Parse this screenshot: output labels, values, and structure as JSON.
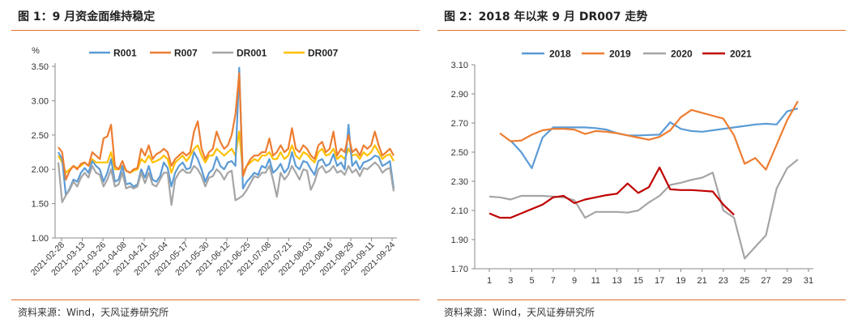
{
  "panels": [
    {
      "title": "图 1：9 月资金面维持稳定",
      "source": "资料来源：Wind，天风证券研究所"
    },
    {
      "title": "图 2：2018 年以来 9 月 DR007 走势",
      "source": "资料来源：Wind，天风证券研究所"
    }
  ],
  "chart_data": [
    {
      "type": "line",
      "title": "",
      "ylabel": "%",
      "ylim": [
        1.0,
        3.5
      ],
      "yticks": [
        "1.00",
        "1.50",
        "2.00",
        "2.50",
        "3.00",
        "3.50"
      ],
      "xticks": [
        "2021-02-28",
        "2021-03-13",
        "2021-03-26",
        "2021-04-08",
        "2021-04-21",
        "2021-05-04",
        "2021-05-17",
        "2021-05-30",
        "2021-06-12",
        "2021-06-25",
        "2021-07-08",
        "2021-07-21",
        "2021-08-03",
        "2021-08-16",
        "2021-08-29",
        "2021-09-11",
        "2021-09-24"
      ],
      "legend_position": "top",
      "grid": false,
      "series": [
        {
          "name": "R001",
          "color": "#5b9bd5",
          "values": [
            2.25,
            2.15,
            1.62,
            1.72,
            1.85,
            1.82,
            1.95,
            2.02,
            1.95,
            2.12,
            2.05,
            2.0,
            1.82,
            1.95,
            2.15,
            1.82,
            1.85,
            2.05,
            1.78,
            1.8,
            1.75,
            1.78,
            2.0,
            1.88,
            2.05,
            1.85,
            1.82,
            1.9,
            2.1,
            2.02,
            1.75,
            1.95,
            2.05,
            2.1,
            2.0,
            2.02,
            2.25,
            2.15,
            2.0,
            1.82,
            1.95,
            2.0,
            2.18,
            2.05,
            2.0,
            2.1,
            2.12,
            2.05,
            3.48,
            1.72,
            1.82,
            1.88,
            1.95,
            1.92,
            2.05,
            2.02,
            2.15,
            1.95,
            2.0,
            2.08,
            1.95,
            2.02,
            2.25,
            2.05,
            2.0,
            2.12,
            2.1,
            2.0,
            1.92,
            2.12,
            2.15,
            2.05,
            2.08,
            2.22,
            2.05,
            2.1,
            2.0,
            2.65,
            2.05,
            2.12,
            2.0,
            2.1,
            2.12,
            2.15,
            2.2,
            2.18,
            2.05,
            2.08,
            2.12,
            1.72
          ]
        },
        {
          "name": "R007",
          "color": "#ed7d31",
          "values": [
            2.32,
            2.25,
            1.85,
            1.98,
            2.05,
            2.0,
            2.08,
            2.1,
            2.05,
            2.25,
            2.2,
            2.15,
            2.45,
            2.48,
            2.65,
            2.05,
            2.0,
            2.12,
            1.98,
            1.95,
            2.0,
            2.02,
            2.3,
            2.2,
            2.35,
            2.15,
            2.22,
            2.25,
            2.3,
            2.25,
            2.05,
            2.15,
            2.2,
            2.25,
            2.2,
            2.25,
            2.55,
            2.7,
            2.3,
            2.15,
            2.25,
            2.3,
            2.55,
            2.4,
            2.3,
            2.35,
            2.5,
            2.8,
            3.4,
            1.9,
            2.05,
            2.15,
            2.2,
            2.2,
            2.25,
            2.25,
            2.45,
            2.2,
            2.25,
            2.35,
            2.25,
            2.3,
            2.6,
            2.3,
            2.25,
            2.35,
            2.3,
            2.2,
            2.15,
            2.35,
            2.4,
            2.25,
            2.3,
            2.55,
            2.2,
            2.3,
            2.25,
            2.5,
            2.25,
            2.3,
            2.2,
            2.35,
            2.3,
            2.35,
            2.55,
            2.35,
            2.2,
            2.25,
            2.3,
            2.2
          ]
        },
        {
          "name": "DR001",
          "color": "#a5a5a5",
          "values": [
            2.1,
            1.52,
            1.62,
            1.7,
            1.82,
            1.75,
            1.88,
            1.95,
            1.88,
            2.05,
            1.95,
            1.92,
            1.75,
            1.85,
            2.0,
            1.75,
            1.78,
            1.95,
            1.72,
            1.75,
            1.72,
            1.75,
            1.95,
            1.8,
            1.95,
            1.78,
            1.75,
            1.85,
            1.95,
            1.95,
            1.48,
            1.85,
            1.95,
            2.0,
            1.95,
            1.95,
            2.05,
            2.0,
            1.9,
            1.75,
            1.88,
            1.9,
            2.0,
            1.95,
            1.85,
            1.95,
            1.98,
            1.55,
            1.58,
            1.62,
            1.7,
            1.8,
            1.9,
            1.88,
            1.95,
            1.95,
            2.05,
            1.85,
            1.6,
            1.95,
            1.85,
            1.92,
            2.05,
            1.95,
            1.85,
            2.0,
            1.98,
            1.7,
            1.82,
            2.0,
            2.05,
            1.95,
            1.98,
            2.05,
            1.95,
            1.98,
            1.92,
            2.05,
            1.95,
            2.0,
            1.9,
            2.02,
            2.0,
            2.05,
            2.1,
            2.05,
            1.95,
            2.0,
            2.02,
            1.68
          ]
        },
        {
          "name": "DR007",
          "color": "#ffc000",
          "values": [
            2.2,
            2.1,
            1.95,
            2.0,
            2.05,
            2.02,
            2.05,
            2.1,
            2.05,
            2.15,
            2.1,
            2.1,
            2.1,
            2.1,
            2.25,
            2.0,
            2.0,
            2.05,
            1.98,
            1.95,
            1.98,
            2.0,
            2.15,
            2.1,
            2.2,
            2.1,
            2.12,
            2.15,
            2.2,
            2.15,
            1.95,
            2.1,
            2.15,
            2.2,
            2.12,
            2.2,
            2.3,
            2.35,
            2.2,
            2.1,
            2.2,
            2.2,
            2.3,
            2.25,
            2.2,
            2.25,
            2.3,
            2.2,
            2.55,
            1.95,
            2.05,
            2.1,
            2.15,
            2.12,
            2.2,
            2.2,
            2.25,
            2.15,
            2.15,
            2.25,
            2.15,
            2.2,
            2.35,
            2.2,
            2.15,
            2.25,
            2.22,
            2.15,
            2.1,
            2.25,
            2.3,
            2.2,
            2.22,
            2.3,
            2.15,
            2.2,
            2.15,
            2.3,
            2.2,
            2.22,
            2.15,
            2.25,
            2.2,
            2.25,
            2.35,
            2.25,
            2.15,
            2.2,
            2.22,
            2.12
          ]
        }
      ]
    },
    {
      "type": "line",
      "title": "",
      "ylabel": "",
      "ylim": [
        1.7,
        3.1
      ],
      "yticks": [
        "1.70",
        "1.90",
        "2.10",
        "2.30",
        "2.50",
        "2.70",
        "2.90",
        "3.10"
      ],
      "xlim": [
        1,
        31
      ],
      "xticks": [
        "1",
        "3",
        "5",
        "7",
        "9",
        "11",
        "13",
        "15",
        "17",
        "19",
        "21",
        "23",
        "25",
        "27",
        "29",
        "31"
      ],
      "legend_position": "top",
      "grid": false,
      "series": [
        {
          "name": "2018",
          "color": "#5b9bd5",
          "x": [
            3,
            4,
            5,
            6,
            7,
            8,
            9,
            10,
            11,
            12,
            13,
            14,
            15,
            16,
            17,
            18,
            19,
            20,
            21,
            22,
            23,
            24,
            25,
            26,
            27,
            28,
            29,
            30
          ],
          "values": [
            2.58,
            2.5,
            2.39,
            2.6,
            2.67,
            2.67,
            2.67,
            2.67,
            2.665,
            2.655,
            2.63,
            2.615,
            2.615,
            2.618,
            2.62,
            2.705,
            2.66,
            2.645,
            2.64,
            2.65,
            2.66,
            2.67,
            2.68,
            2.69,
            2.695,
            2.69,
            2.78,
            2.8
          ]
        },
        {
          "name": "2019",
          "color": "#ed7d31",
          "x": [
            2,
            3,
            4,
            5,
            6,
            7,
            8,
            9,
            10,
            11,
            12,
            13,
            14,
            15,
            16,
            17,
            18,
            19,
            20,
            21,
            22,
            23,
            24,
            25,
            26,
            27,
            28,
            29,
            30
          ],
          "values": [
            2.63,
            2.575,
            2.58,
            2.62,
            2.65,
            2.66,
            2.66,
            2.655,
            2.625,
            2.645,
            2.64,
            2.63,
            2.615,
            2.6,
            2.585,
            2.605,
            2.65,
            2.74,
            2.79,
            2.77,
            2.75,
            2.73,
            2.615,
            2.42,
            2.46,
            2.38,
            2.55,
            2.72,
            2.85
          ]
        },
        {
          "name": "2020",
          "color": "#a5a5a5",
          "x": [
            1,
            2,
            3,
            4,
            5,
            6,
            7,
            8,
            9,
            10,
            11,
            12,
            13,
            14,
            15,
            16,
            17,
            18,
            19,
            20,
            21,
            22,
            23,
            24,
            25,
            26,
            27,
            28,
            29,
            30
          ],
          "values": [
            2.195,
            2.19,
            2.175,
            2.2,
            2.2,
            2.2,
            2.195,
            2.19,
            2.17,
            2.05,
            2.09,
            2.09,
            2.09,
            2.085,
            2.1,
            2.155,
            2.2,
            2.275,
            2.29,
            2.31,
            2.325,
            2.36,
            2.1,
            2.05,
            1.77,
            1.85,
            1.93,
            2.25,
            2.39,
            2.45
          ]
        },
        {
          "name": "2021",
          "color": "#c00000",
          "x": [
            1,
            2,
            3,
            4,
            5,
            6,
            7,
            8,
            9,
            10,
            11,
            12,
            13,
            14,
            15,
            16,
            17,
            18,
            19,
            20,
            21,
            22,
            23,
            24
          ],
          "values": [
            2.08,
            2.05,
            2.05,
            2.08,
            2.11,
            2.14,
            2.19,
            2.2,
            2.15,
            2.175,
            2.19,
            2.205,
            2.215,
            2.285,
            2.22,
            2.26,
            2.395,
            2.245,
            2.24,
            2.24,
            2.235,
            2.23,
            2.14,
            2.07
          ]
        }
      ]
    }
  ]
}
